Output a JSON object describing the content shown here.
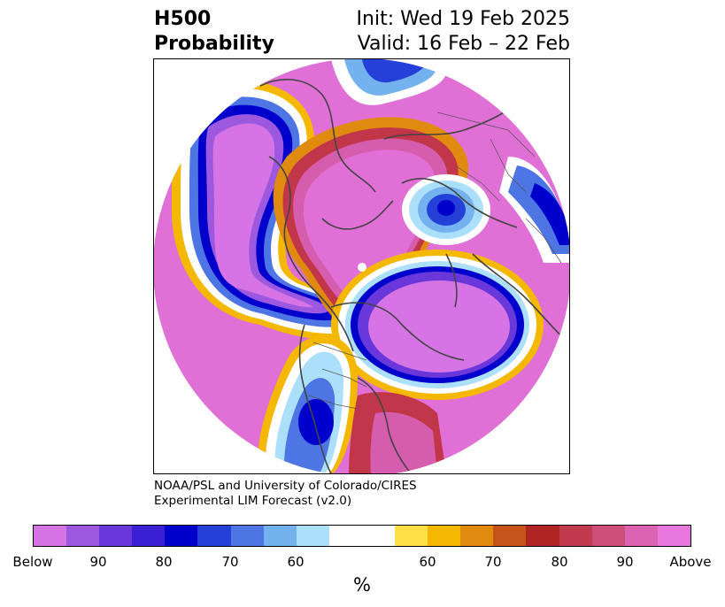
{
  "title": {
    "left_line1": "H500",
    "left_line2": "Probability",
    "right_line1": "Init: Wed 19 Feb 2025",
    "right_line2": "Valid: 16 Feb – 22 Feb"
  },
  "credit": {
    "line1": "NOAA/PSL and University of Colorado/CIRES",
    "line2": "Experimental LIM Forecast (v2.0)"
  },
  "colorbar": {
    "colors": [
      "#d674e6",
      "#9c59e0",
      "#6a37da",
      "#3a1fd4",
      "#0000cc",
      "#2540d8",
      "#4d75e4",
      "#74b2ef",
      "#acdffa",
      "#ffffff",
      "#ffffff",
      "#ffe047",
      "#f5b800",
      "#e08a10",
      "#c6541a",
      "#b02424",
      "#c23a4e",
      "#cc4f7a",
      "#dc62b4",
      "#e878df"
    ],
    "tick_labels": [
      "Below",
      "90",
      "80",
      "70",
      "60",
      "60",
      "70",
      "80",
      "90",
      "Above"
    ],
    "unit": "%"
  },
  "map": {
    "palette": {
      "above": "#e070d6",
      "above_90": "#d65cad",
      "above_80": "#c2364a",
      "above_70": "#e08a10",
      "above_60": "#f5b800",
      "near": "#ffffff",
      "below_60": "#acdffa",
      "below_70": "#4d75e4",
      "below_80": "#0000cc",
      "below_90": "#6a37da",
      "below": "#d674e6",
      "coast": "#444444"
    }
  }
}
